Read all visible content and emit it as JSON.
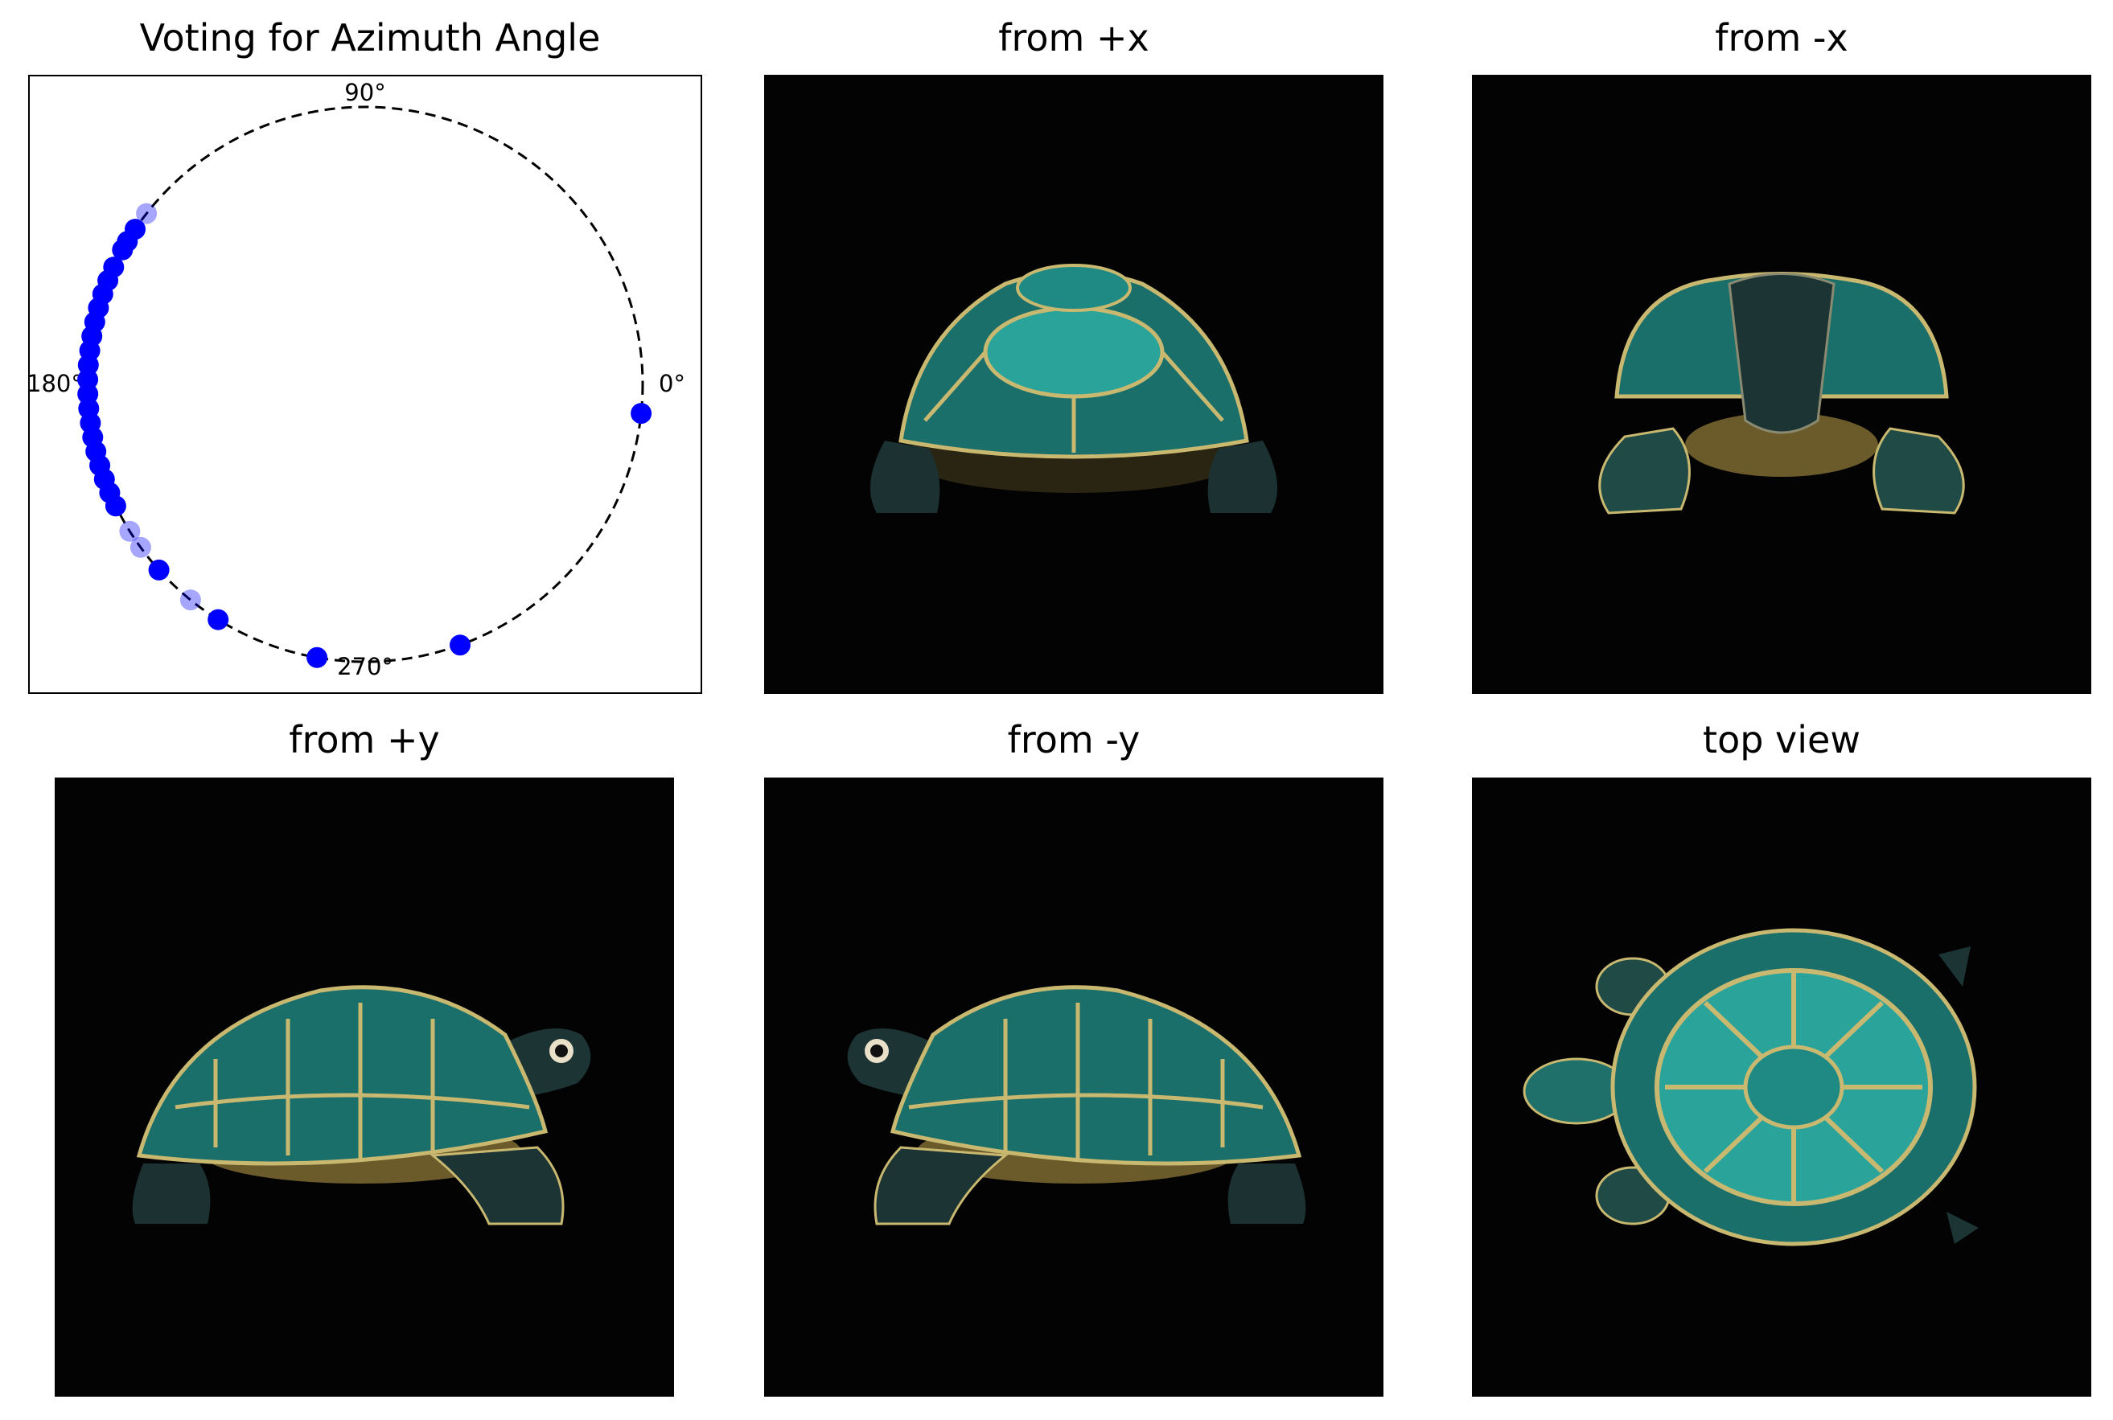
{
  "chart_data": {
    "type": "scatter",
    "subtype": "polar-angle-votes",
    "title": "Voting for Azimuth Angle",
    "angle_ticks": [
      "0°",
      "90°",
      "180°",
      "270°"
    ],
    "point_color": "#0000ff",
    "circle_style": "dashed",
    "points": [
      {
        "angle": 142,
        "alpha": 0.35
      },
      {
        "angle": 146,
        "alpha": 1.0
      },
      {
        "angle": 149,
        "alpha": 1.0
      },
      {
        "angle": 151,
        "alpha": 1.0
      },
      {
        "angle": 155,
        "alpha": 1.0
      },
      {
        "angle": 158,
        "alpha": 1.0
      },
      {
        "angle": 161,
        "alpha": 1.0
      },
      {
        "angle": 164,
        "alpha": 1.0
      },
      {
        "angle": 167,
        "alpha": 1.0
      },
      {
        "angle": 170,
        "alpha": 1.0
      },
      {
        "angle": 173,
        "alpha": 1.0
      },
      {
        "angle": 176,
        "alpha": 1.0
      },
      {
        "angle": 179,
        "alpha": 1.0
      },
      {
        "angle": 182,
        "alpha": 1.0
      },
      {
        "angle": 185,
        "alpha": 1.0
      },
      {
        "angle": 188,
        "alpha": 1.0
      },
      {
        "angle": 191,
        "alpha": 1.0
      },
      {
        "angle": 194,
        "alpha": 1.0
      },
      {
        "angle": 197,
        "alpha": 1.0
      },
      {
        "angle": 200,
        "alpha": 1.0
      },
      {
        "angle": 203,
        "alpha": 1.0
      },
      {
        "angle": 206,
        "alpha": 1.0
      },
      {
        "angle": 212,
        "alpha": 0.35
      },
      {
        "angle": 216,
        "alpha": 0.35
      },
      {
        "angle": 222,
        "alpha": 1.0
      },
      {
        "angle": 231,
        "alpha": 0.35
      },
      {
        "angle": 238,
        "alpha": 1.0
      },
      {
        "angle": 260,
        "alpha": 1.0
      },
      {
        "angle": 290,
        "alpha": 1.0
      },
      {
        "angle": 354,
        "alpha": 1.0
      }
    ]
  },
  "panels": [
    {
      "title": "Voting for Azimuth Angle"
    },
    {
      "title": "from +x"
    },
    {
      "title": "from -x"
    },
    {
      "title": "from +y"
    },
    {
      "title": "from -y"
    },
    {
      "title": "top view"
    }
  ],
  "colors": {
    "shell": "#1a6f6a",
    "scute": "#2aa39a",
    "seam": "#c8b870",
    "plastron": "#6b5a2a",
    "skin": "#1d3434",
    "background": "#030303"
  }
}
